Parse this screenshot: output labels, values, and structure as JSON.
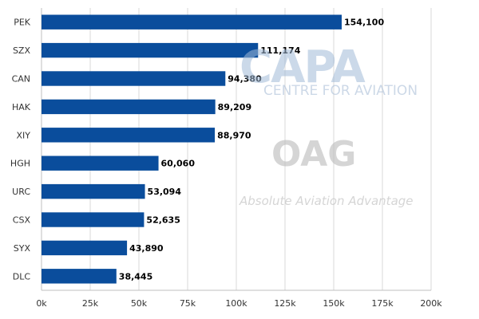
{
  "chart_data": {
    "type": "bar",
    "orientation": "horizontal",
    "categories": [
      "PEK",
      "SZX",
      "CAN",
      "HAK",
      "XIY",
      "HGH",
      "URC",
      "CSX",
      "SYX",
      "DLC"
    ],
    "values": [
      154100,
      111174,
      94380,
      89209,
      88970,
      60060,
      53094,
      52635,
      43890,
      38445
    ],
    "value_labels": [
      "154,100",
      "111,174",
      "94,380",
      "89,209",
      "88,970",
      "60,060",
      "53,094",
      "52,635",
      "43,890",
      "38,445"
    ],
    "x_ticks": [
      0,
      25000,
      50000,
      75000,
      100000,
      125000,
      150000,
      175000,
      200000
    ],
    "x_tick_labels": [
      "0k",
      "25k",
      "50k",
      "75k",
      "100k",
      "125k",
      "150k",
      "175k",
      "200k"
    ],
    "xlim": [
      0,
      200000
    ],
    "grid": "vertical",
    "bar_color": "#0a4d9c",
    "title": "",
    "xlabel": "",
    "ylabel": ""
  },
  "watermark": {
    "capa": "CAPA",
    "capa_sub": "CENTRE FOR AVIATION",
    "oag": "OAG",
    "oag_tagline": "Absolute Aviation Advantage"
  }
}
